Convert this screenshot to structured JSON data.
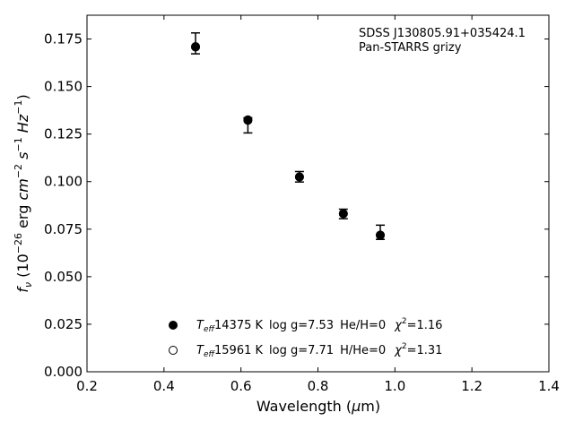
{
  "chart_data": {
    "type": "scatter",
    "object_name": "SDSS J130805.91+035424.1",
    "survey": "Pan-STARRS grizy",
    "xlabel": "Wavelength (μm)",
    "ylabel": "fν (10⁻²⁶ erg cm⁻² s⁻¹ Hz⁻¹)",
    "xlim": [
      0.2,
      1.4
    ],
    "ylim": [
      0.0,
      0.1875
    ],
    "xticks": [
      "0.2",
      "0.4",
      "0.6",
      "0.8",
      "1.0",
      "1.2",
      "1.4"
    ],
    "yticks": [
      "0.000",
      "0.025",
      "0.050",
      "0.075",
      "0.100",
      "0.125",
      "0.150",
      "0.175"
    ],
    "grid": false,
    "legend_position": "bottom-center",
    "observed": {
      "x": [
        0.482,
        0.618,
        0.752,
        0.866,
        0.962
      ],
      "y": [
        0.1707,
        0.1321,
        0.1023,
        0.083,
        0.0721
      ],
      "err_low": [
        0.0035,
        0.0065,
        0.0025,
        0.0025,
        0.0025
      ],
      "err_high": [
        0.0075,
        0.0015,
        0.003,
        0.0025,
        0.005
      ]
    },
    "series": [
      {
        "marker": "filled-circle",
        "teff": "14375 K",
        "logg": "log g=7.53",
        "composition": "He/H=0",
        "chi2": "=1.16",
        "x": [
          0.482,
          0.618,
          0.752,
          0.866,
          0.962
        ],
        "y": [
          0.171,
          0.1325,
          0.1025,
          0.0832,
          0.0718
        ]
      },
      {
        "marker": "open-circle",
        "teff": "15961 K",
        "logg": "log g=7.71",
        "composition": "H/He=0",
        "chi2": "=1.31",
        "x": [
          0.482,
          0.618,
          0.752,
          0.866,
          0.962
        ],
        "y": [
          0.1708,
          0.1322,
          0.1024,
          0.0831,
          0.0719
        ]
      }
    ],
    "colors": {
      "marker": "#000000",
      "axis": "#000000"
    }
  }
}
